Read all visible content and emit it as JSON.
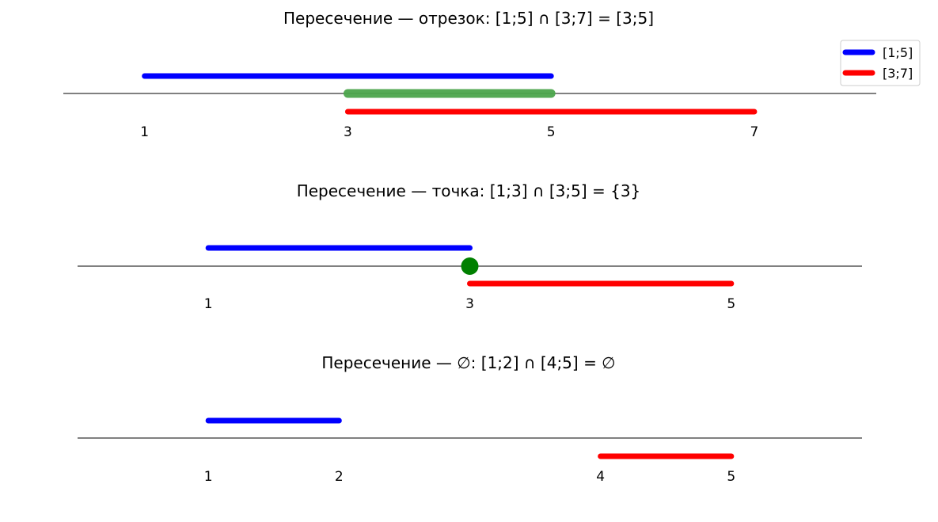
{
  "chart_data": [
    {
      "type": "line",
      "title": "Пересечение — отрезок: [1;5] ∩ [3;7] = [3;5]",
      "xlim": [
        0.2,
        8.2
      ],
      "ticks": [
        "1",
        "3",
        "5",
        "7"
      ],
      "tick_values": [
        1,
        3,
        5,
        7
      ],
      "series": [
        {
          "name": "[1;5]",
          "x": [
            1,
            5
          ],
          "color": "#0000ff"
        },
        {
          "name": "[3;7]",
          "x": [
            3,
            7
          ],
          "color": "#ff0000"
        }
      ],
      "intersection": {
        "kind": "segment",
        "x": [
          3,
          5
        ],
        "color": "#4ca64c"
      },
      "legend": "top-right"
    },
    {
      "type": "line",
      "title": "Пересечение — точка: [1;3] ∩ [3;5] = {3}",
      "xlim": [
        0.0,
        6.0
      ],
      "ticks": [
        "1",
        "3",
        "5"
      ],
      "tick_values": [
        1,
        3,
        5
      ],
      "series": [
        {
          "x": [
            1,
            3
          ],
          "color": "#0000ff"
        },
        {
          "x": [
            3,
            5
          ],
          "color": "#ff0000"
        }
      ],
      "intersection": {
        "kind": "point",
        "x": [
          3
        ],
        "color": "#008000"
      }
    },
    {
      "type": "line",
      "title": "Пересечение — ∅: [1;2] ∩ [4;5] = ∅",
      "xlim": [
        0.0,
        6.0
      ],
      "ticks": [
        "1",
        "2",
        "4",
        "5"
      ],
      "tick_values": [
        1,
        2,
        4,
        5
      ],
      "series": [
        {
          "x": [
            1,
            2
          ],
          "color": "#0000ff"
        },
        {
          "x": [
            4,
            5
          ],
          "color": "#ff0000"
        }
      ],
      "intersection": {
        "kind": "empty"
      }
    }
  ]
}
